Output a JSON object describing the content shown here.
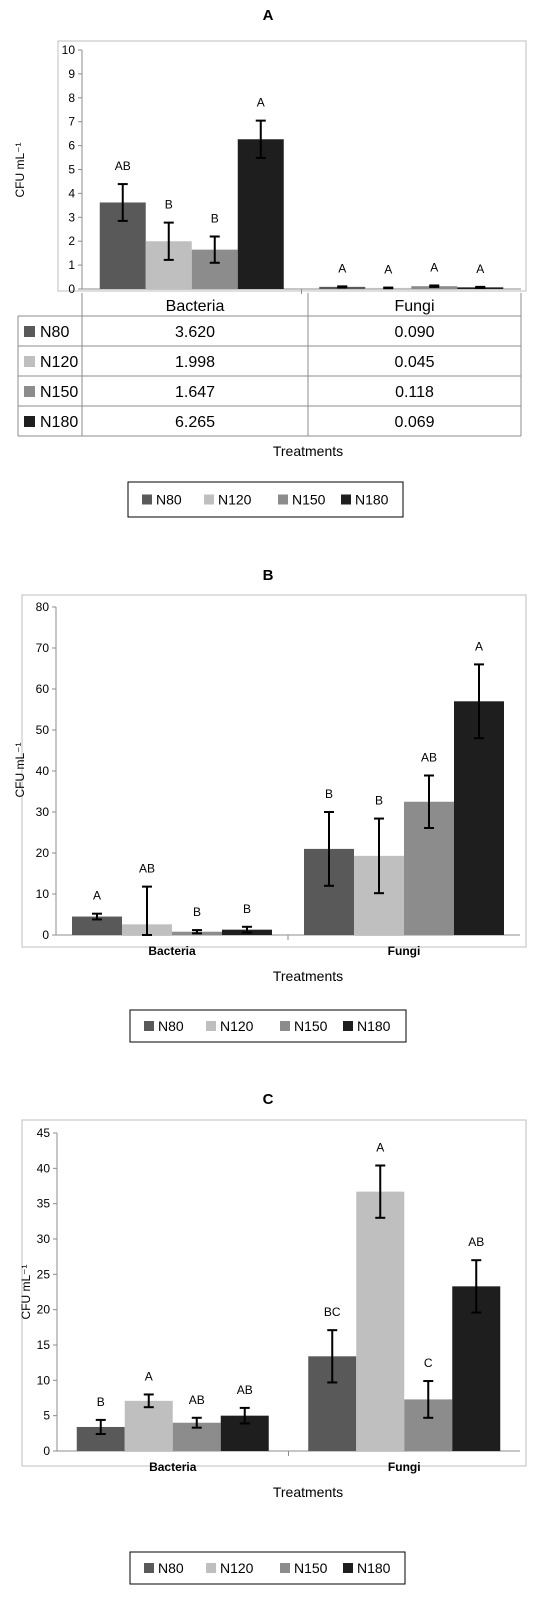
{
  "chart_data": [
    {
      "type": "bar",
      "panel": "A",
      "title": "A",
      "ylabel": "CFU mL⁻¹",
      "xlabel": "Treatments",
      "categories": [
        "Bacteria",
        "Fungi"
      ],
      "ylim": [
        0,
        10
      ],
      "yticks": [
        0,
        1,
        2,
        3,
        4,
        5,
        6,
        7,
        8,
        9,
        10
      ],
      "grid": false,
      "has_data_table": true,
      "legend_position": "bottom",
      "series": [
        {
          "name": "N80",
          "color": "#595959",
          "values": [
            3.62,
            0.09
          ],
          "errors": [
            0.77,
            0.02
          ],
          "letters": [
            "AB",
            "A"
          ],
          "table": [
            "3.620",
            "0.090"
          ]
        },
        {
          "name": "N120",
          "color": "#bfbfbf",
          "values": [
            1.998,
            0.045
          ],
          "errors": [
            0.78,
            0.015
          ],
          "letters": [
            "B",
            "A"
          ],
          "table": [
            "1.998",
            "0.045"
          ]
        },
        {
          "name": "N150",
          "color": "#8c8c8c",
          "values": [
            1.647,
            0.118
          ],
          "errors": [
            0.55,
            0.03
          ],
          "letters": [
            "B",
            "A"
          ],
          "table": [
            "1.647",
            "0.118"
          ]
        },
        {
          "name": "N180",
          "color": "#1e1e1e",
          "values": [
            6.265,
            0.069
          ],
          "errors": [
            0.78,
            0.02
          ],
          "letters": [
            "A",
            "A"
          ],
          "table": [
            "6.265",
            "0.069"
          ]
        }
      ]
    },
    {
      "type": "bar",
      "panel": "B",
      "title": "B",
      "ylabel": "CFU mL⁻¹",
      "xlabel": "Treatments",
      "categories": [
        "Bacteria",
        "Fungi"
      ],
      "ylim": [
        0,
        80
      ],
      "yticks": [
        0,
        10,
        20,
        30,
        40,
        50,
        60,
        70,
        80
      ],
      "grid": false,
      "has_data_table": false,
      "legend_position": "bottom",
      "series": [
        {
          "name": "N80",
          "color": "#595959",
          "values": [
            4.5,
            21
          ],
          "errors": [
            0.7,
            9
          ],
          "letters": [
            "A",
            "B"
          ]
        },
        {
          "name": "N120",
          "color": "#bfbfbf",
          "values": [
            2.6,
            19.3
          ],
          "errors": [
            9.2,
            9.1
          ],
          "letters": [
            "AB",
            "B"
          ]
        },
        {
          "name": "N150",
          "color": "#8c8c8c",
          "values": [
            0.8,
            32.5
          ],
          "errors": [
            0.4,
            6.4
          ],
          "letters": [
            "B",
            "AB"
          ]
        },
        {
          "name": "N180",
          "color": "#1e1e1e",
          "values": [
            1.3,
            57
          ],
          "errors": [
            0.7,
            9
          ],
          "letters": [
            "B",
            "A"
          ]
        }
      ]
    },
    {
      "type": "bar",
      "panel": "C",
      "title": "C",
      "ylabel": "CFU mL⁻¹",
      "xlabel": "Treatments",
      "categories": [
        "Bacteria",
        "Fungi"
      ],
      "ylim": [
        0,
        45
      ],
      "yticks": [
        0,
        5,
        10,
        15,
        20,
        25,
        30,
        35,
        40,
        45
      ],
      "grid": false,
      "has_data_table": false,
      "legend_position": "bottom",
      "series": [
        {
          "name": "N80",
          "color": "#595959",
          "values": [
            3.4,
            13.4
          ],
          "errors": [
            1.0,
            3.7
          ],
          "letters": [
            "B",
            "BC"
          ]
        },
        {
          "name": "N120",
          "color": "#bfbfbf",
          "values": [
            7.1,
            36.7
          ],
          "errors": [
            0.9,
            3.7
          ],
          "letters": [
            "A",
            "A"
          ]
        },
        {
          "name": "N150",
          "color": "#8c8c8c",
          "values": [
            4.0,
            7.3
          ],
          "errors": [
            0.7,
            2.6
          ],
          "letters": [
            "AB",
            "C"
          ]
        },
        {
          "name": "N180",
          "color": "#1e1e1e",
          "values": [
            5.0,
            23.3
          ],
          "errors": [
            1.1,
            3.7
          ],
          "letters": [
            "AB",
            "AB"
          ]
        }
      ]
    }
  ]
}
